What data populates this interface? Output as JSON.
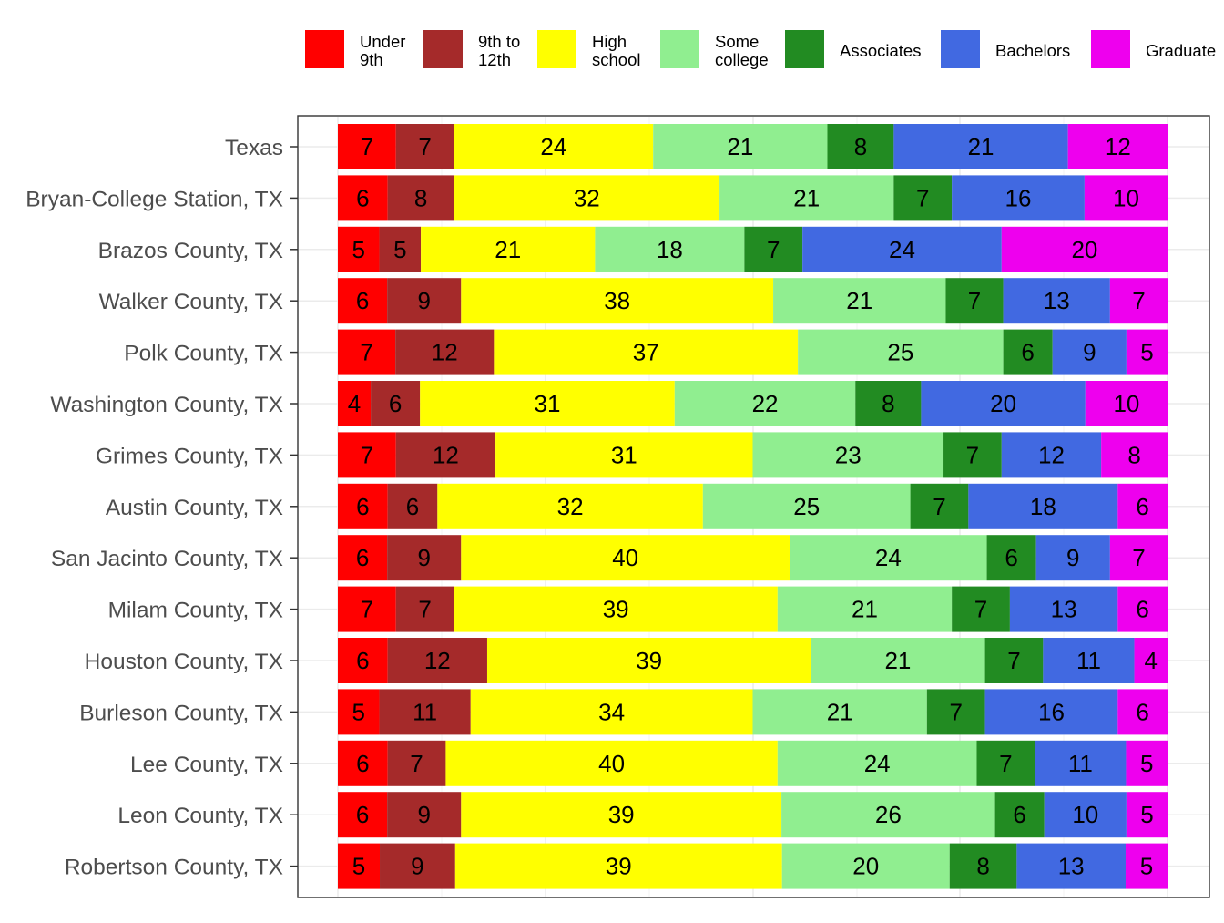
{
  "chart_data": {
    "type": "bar",
    "orientation": "horizontal",
    "stacked": true,
    "title": "",
    "xlabel": "",
    "ylabel": "",
    "grid": true,
    "legend_position": "top",
    "categories": [
      "Texas",
      "Bryan-College Station, TX",
      "Brazos County, TX",
      "Walker County, TX",
      "Polk County, TX",
      "Washington County, TX",
      "Grimes County, TX",
      "Austin County, TX",
      "San Jacinto County, TX",
      "Milam County, TX",
      "Houston County, TX",
      "Burleson County, TX",
      "Lee County, TX",
      "Leon County, TX",
      "Robertson County, TX"
    ],
    "series": [
      {
        "name": "Under 9th",
        "legend_lines": [
          "Under",
          "9th"
        ],
        "color": "#ff0000",
        "values": [
          7,
          6,
          5,
          6,
          7,
          4,
          7,
          6,
          6,
          7,
          6,
          5,
          6,
          6,
          5
        ]
      },
      {
        "name": "9th to 12th",
        "legend_lines": [
          "9th to",
          "12th"
        ],
        "color": "#a52a2a",
        "values": [
          7,
          8,
          5,
          9,
          12,
          6,
          12,
          6,
          9,
          7,
          12,
          11,
          7,
          9,
          9
        ]
      },
      {
        "name": "High school",
        "legend_lines": [
          "High",
          "school"
        ],
        "color": "#ffff00",
        "values": [
          24,
          32,
          21,
          38,
          37,
          31,
          31,
          32,
          40,
          39,
          39,
          34,
          40,
          39,
          39
        ]
      },
      {
        "name": "Some college",
        "legend_lines": [
          "Some",
          "college"
        ],
        "color": "#90ee90",
        "values": [
          21,
          21,
          18,
          21,
          25,
          22,
          23,
          25,
          24,
          21,
          21,
          21,
          24,
          26,
          20
        ]
      },
      {
        "name": "Associates",
        "legend_lines": [
          "Associates"
        ],
        "color": "#228b22",
        "values": [
          8,
          7,
          7,
          7,
          6,
          8,
          7,
          7,
          6,
          7,
          7,
          7,
          7,
          6,
          8
        ]
      },
      {
        "name": "Bachelors",
        "legend_lines": [
          "Bachelors"
        ],
        "color": "#4169e1",
        "values": [
          21,
          16,
          24,
          13,
          9,
          20,
          12,
          18,
          9,
          13,
          11,
          16,
          11,
          10,
          13
        ]
      },
      {
        "name": "Graduate",
        "legend_lines": [
          "Graduate"
        ],
        "color": "#ee00ee",
        "values": [
          12,
          10,
          20,
          7,
          5,
          10,
          8,
          6,
          7,
          6,
          4,
          6,
          5,
          5,
          5
        ]
      }
    ]
  }
}
